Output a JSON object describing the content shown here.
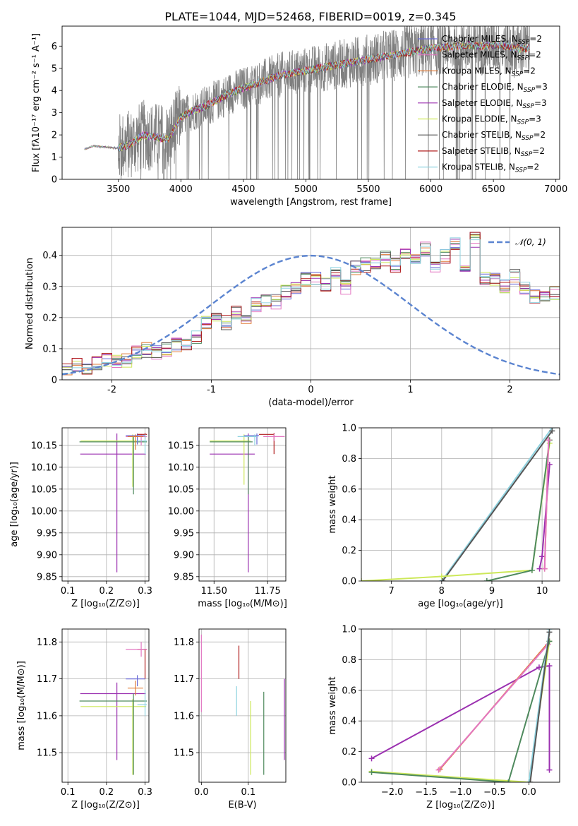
{
  "figure_title": "PLATE=1044, MJD=52468, FIBERID=0019, z=0.345",
  "models": [
    {
      "name": "Chabrier MILES, N",
      "sub": "SSP",
      "tail": "=2",
      "color": "#6b6bd6"
    },
    {
      "name": "Salpeter MILES, N",
      "sub": "SSP",
      "tail": "=2",
      "color": "#e377c2"
    },
    {
      "name": "Kroupa MILES, N",
      "sub": "SSP",
      "tail": "=2",
      "color": "#e07b39"
    },
    {
      "name": "Chabrier ELODIE, N",
      "sub": "SSP",
      "tail": "=3",
      "color": "#4f8a5e"
    },
    {
      "name": "Salpeter ELODIE, N",
      "sub": "SSP",
      "tail": "=3",
      "color": "#9b30b0"
    },
    {
      "name": "Kroupa ELODIE, N",
      "sub": "SSP",
      "tail": "=3",
      "color": "#cde85a"
    },
    {
      "name": "Chabrier STELIB, N",
      "sub": "SSP",
      "tail": "=2",
      "color": "#555555"
    },
    {
      "name": "Salpeter STELIB, N",
      "sub": "SSP",
      "tail": "=2",
      "color": "#b01c1c"
    },
    {
      "name": "Kroupa STELIB, N",
      "sub": "SSP",
      "tail": "=2",
      "color": "#8fd3e0"
    }
  ],
  "chart_data": [
    {
      "id": "spectrum",
      "type": "line",
      "xlabel": "wavelength [Angstrom, rest frame]",
      "ylabel": "Flux [fλ10⁻¹⁷ erg cm⁻² s⁻¹ A⁻¹]",
      "xlim": [
        3050,
        7030
      ],
      "ylim": [
        0,
        6.9
      ],
      "xticks": [
        3500,
        4000,
        4500,
        5000,
        5500,
        6000,
        6500,
        7000
      ],
      "yticks": [
        0,
        1,
        2,
        3,
        4,
        5,
        6
      ],
      "continuum": {
        "x": [
          3230,
          3300,
          3400,
          3500,
          3600,
          3700,
          3800,
          3900,
          4000,
          4100,
          4200,
          4300,
          4400,
          4500,
          4600,
          4700,
          4800,
          4900,
          5000,
          5100,
          5200,
          5300,
          5400,
          5500,
          5600,
          5700,
          5800,
          5900,
          6000,
          6100,
          6200,
          6300,
          6400,
          6500,
          6600,
          6700,
          6800
        ],
        "y": [
          1.35,
          1.5,
          1.45,
          1.4,
          1.6,
          2.0,
          1.9,
          1.8,
          2.8,
          3.1,
          3.3,
          3.6,
          3.9,
          4.1,
          4.3,
          4.5,
          4.7,
          4.8,
          4.9,
          5.0,
          5.1,
          5.2,
          5.3,
          5.4,
          5.5,
          5.6,
          5.7,
          5.8,
          5.9,
          5.95,
          6.0,
          6.05,
          6.0,
          6.05,
          6.0,
          5.9,
          5.9
        ]
      },
      "data_range": [
        3230,
        6790
      ]
    },
    {
      "id": "residuals",
      "type": "bar",
      "xlabel": "(data-model)/error",
      "ylabel": "Normed distribution",
      "xlim": [
        -2.5,
        2.5
      ],
      "ylim": [
        0,
        0.49
      ],
      "xticks": [
        -2,
        -1,
        0,
        1,
        2
      ],
      "yticks": [
        0.0,
        0.1,
        0.2,
        0.3,
        0.4
      ],
      "legend": "𝒩(0, 1)",
      "legend_position": "top-right",
      "grid": true,
      "bin_edges_start": -2.5,
      "bin_width": 0.1,
      "values": [
        0.04,
        0.045,
        0.04,
        0.05,
        0.06,
        0.055,
        0.06,
        0.085,
        0.095,
        0.09,
        0.1,
        0.11,
        0.12,
        0.14,
        0.18,
        0.2,
        0.185,
        0.22,
        0.2,
        0.24,
        0.26,
        0.25,
        0.28,
        0.3,
        0.32,
        0.33,
        0.31,
        0.34,
        0.3,
        0.36,
        0.37,
        0.38,
        0.39,
        0.37,
        0.4,
        0.38,
        0.42,
        0.36,
        0.4,
        0.44,
        0.35,
        0.45,
        0.33,
        0.32,
        0.3,
        0.33,
        0.29,
        0.27,
        0.26,
        0.28,
        0.25,
        0.22,
        0.2,
        0.21,
        0.2,
        0.17,
        0.19,
        0.14,
        0.15,
        0.12,
        0.13,
        0.1,
        0.1,
        0.085,
        0.08,
        0.07,
        0.06,
        0.055,
        0.05,
        0.04,
        0.035,
        0.03,
        0.03
      ],
      "normal_curve": {
        "mean": 0,
        "sigma": 1
      }
    },
    {
      "id": "age_vs_Z",
      "type": "errorbar",
      "xlabel": "Z [log₁₀(Z/Z⊙)]",
      "ylabel": "age  [log₁₀(age/yr)]",
      "xlim": [
        0.085,
        0.31
      ],
      "ylim": [
        9.84,
        10.19
      ],
      "xticks": [
        "0.1",
        "0.2",
        "0.3"
      ],
      "xtick_values": [
        0.1,
        0.2,
        0.3
      ],
      "yticks": [
        "9.85",
        "9.90",
        "9.95",
        "10.00",
        "10.05",
        "10.10",
        "10.15"
      ],
      "ytick_values": [
        9.85,
        9.9,
        9.95,
        10.0,
        10.05,
        10.1,
        10.15
      ],
      "points": [
        {
          "m": 4,
          "x": 0.227,
          "y": 10.13,
          "xerr": [
            0.095,
            0.075
          ],
          "yerr": [
            0.27,
            0.047
          ]
        },
        {
          "m": 5,
          "x": 0.268,
          "y": 10.16,
          "xerr": [
            0.135,
            0.035
          ],
          "yerr": [
            0.105,
            0.015
          ]
        },
        {
          "m": 3,
          "x": 0.27,
          "y": 10.158,
          "xerr": [
            0.14,
            0.035
          ],
          "yerr": [
            0.12,
            0.012
          ]
        },
        {
          "m": 0,
          "x": 0.28,
          "y": 10.172,
          "xerr": [
            0.03,
            0.02
          ],
          "yerr": [
            0.02,
            0.005
          ]
        },
        {
          "m": 1,
          "x": 0.29,
          "y": 10.17,
          "xerr": [
            0.04,
            0.015
          ],
          "yerr": [
            0.02,
            0.006
          ]
        },
        {
          "m": 2,
          "x": 0.275,
          "y": 10.17,
          "xerr": [
            0.02,
            0.02
          ],
          "yerr": [
            0.03,
            0.005
          ]
        },
        {
          "m": 7,
          "x": 0.3,
          "y": 10.175,
          "xerr": [
            0.02,
            0.005
          ],
          "yerr": [
            0.01,
            0.003
          ]
        },
        {
          "m": 8,
          "x": 0.3,
          "y": 10.16,
          "xerr": [
            0.02,
            0.005
          ],
          "yerr": [
            0.03,
            0.015
          ]
        }
      ]
    },
    {
      "id": "age_vs_mass",
      "type": "errorbar",
      "xlabel": "mass [log₁₀(M/M⊙)]",
      "ylabel": "",
      "xlim": [
        11.43,
        11.835
      ],
      "ylim": [
        9.84,
        10.19
      ],
      "xticks": [
        "11.50",
        "11.75"
      ],
      "xtick_values": [
        11.5,
        11.75
      ],
      "yticks": [
        "9.85",
        "9.90",
        "9.95",
        "10.00",
        "10.05",
        "10.10",
        "10.15"
      ],
      "ytick_values": [
        9.85,
        9.9,
        9.95,
        10.0,
        10.05,
        10.1,
        10.15
      ],
      "points": [
        {
          "m": 4,
          "x": 11.66,
          "y": 10.13,
          "xerr": [
            0.18,
            0.03
          ],
          "yerr": [
            0.27,
            0.047
          ]
        },
        {
          "m": 5,
          "x": 11.64,
          "y": 10.16,
          "xerr": [
            0.16,
            0.03
          ],
          "yerr": [
            0.1,
            0.015
          ]
        },
        {
          "m": 3,
          "x": 11.66,
          "y": 10.158,
          "xerr": [
            0.18,
            0.02
          ],
          "yerr": [
            0.12,
            0.012
          ]
        },
        {
          "m": 7,
          "x": 11.78,
          "y": 10.175,
          "xerr": [
            0.07,
            0.0
          ],
          "yerr": [
            0.045,
            0.003
          ]
        },
        {
          "m": 1,
          "x": 11.78,
          "y": 10.17,
          "xerr": [
            0.05,
            0.05
          ],
          "yerr": [
            0.01,
            0.006
          ]
        },
        {
          "m": 0,
          "x": 11.7,
          "y": 10.172,
          "xerr": [
            0.06,
            0.01
          ],
          "yerr": [
            0.02,
            0.005
          ]
        },
        {
          "m": 8,
          "x": 11.69,
          "y": 10.17,
          "xerr": [
            0.08,
            0.01
          ],
          "yerr": [
            0.02,
            0.005
          ]
        }
      ]
    },
    {
      "id": "massweight_vs_age",
      "type": "line",
      "xlabel": "age  [log₁₀(age/yr)]",
      "ylabel": "mass weight",
      "xlim": [
        6.4,
        10.35
      ],
      "ylim": [
        0,
        1.0
      ],
      "xticks": [
        "7",
        "8",
        "9",
        "10"
      ],
      "xtick_values": [
        7,
        8,
        9,
        10
      ],
      "yticks": [
        "0.0",
        "0.2",
        "0.4",
        "0.6",
        "0.8",
        "1.0"
      ],
      "ytick_values": [
        0,
        0.2,
        0.4,
        0.6,
        0.8,
        1.0
      ],
      "grid": true,
      "series": [
        {
          "m": 8,
          "x": [
            8.0,
            10.2
          ],
          "y": [
            0.0,
            1.0
          ]
        },
        {
          "m": 6,
          "x": [
            8.02,
            10.2
          ],
          "y": [
            0.0,
            0.98
          ]
        },
        {
          "m": 5,
          "x": [
            6.4,
            8.0,
            9.8,
            10.15
          ],
          "y": [
            0.0,
            0.03,
            0.07,
            0.9
          ]
        },
        {
          "m": 3,
          "x": [
            8.9,
            9.8,
            10.15
          ],
          "y": [
            0.0,
            0.07,
            0.92
          ]
        },
        {
          "m": 4,
          "x": [
            9.95,
            10.0,
            10.15
          ],
          "y": [
            0.08,
            0.16,
            0.76
          ]
        },
        {
          "m": 2,
          "x": [
            10.05,
            10.13
          ],
          "y": [
            0.08,
            0.92
          ]
        },
        {
          "m": 1,
          "x": [
            10.05,
            10.13
          ],
          "y": [
            0.08,
            0.92
          ]
        }
      ]
    },
    {
      "id": "mass_vs_Z",
      "type": "errorbar",
      "xlabel": "Z [log₁₀(Z/Z⊙)]",
      "ylabel": "mass [log₁₀(M/M⊙)]",
      "xlim": [
        0.085,
        0.31
      ],
      "ylim": [
        11.42,
        11.835
      ],
      "xticks": [
        "0.1",
        "0.2",
        "0.3"
      ],
      "xtick_values": [
        0.1,
        0.2,
        0.3
      ],
      "yticks": [
        "11.5",
        "11.6",
        "11.7",
        "11.8"
      ],
      "ytick_values": [
        11.5,
        11.6,
        11.7,
        11.8
      ],
      "points": [
        {
          "m": 4,
          "x": 0.227,
          "y": 11.66,
          "xerr": [
            0.095,
            0.075
          ],
          "yerr": [
            0.18,
            0.03
          ]
        },
        {
          "m": 5,
          "x": 0.268,
          "y": 11.625,
          "xerr": [
            0.135,
            0.035
          ],
          "yerr": [
            0.185,
            0.02
          ]
        },
        {
          "m": 3,
          "x": 0.27,
          "y": 11.64,
          "xerr": [
            0.14,
            0.035
          ],
          "yerr": [
            0.2,
            0.02
          ]
        },
        {
          "m": 7,
          "x": 0.3,
          "y": 11.78,
          "xerr": [
            0.02,
            0.005
          ],
          "yerr": [
            0.08,
            0.0
          ]
        },
        {
          "m": 1,
          "x": 0.29,
          "y": 11.78,
          "xerr": [
            0.04,
            0.015
          ],
          "yerr": [
            0.02,
            0.02
          ]
        },
        {
          "m": 2,
          "x": 0.275,
          "y": 11.675,
          "xerr": [
            0.02,
            0.02
          ],
          "yerr": [
            0.02,
            0.02
          ]
        },
        {
          "m": 0,
          "x": 0.28,
          "y": 11.7,
          "xerr": [
            0.03,
            0.02
          ],
          "yerr": [
            0.02,
            0.01
          ]
        },
        {
          "m": 8,
          "x": 0.3,
          "y": 11.63,
          "xerr": [
            0.02,
            0.005
          ],
          "yerr": [
            0.03,
            0.04
          ]
        }
      ]
    },
    {
      "id": "mass_vs_ebv",
      "type": "errorbar",
      "xlabel": "E(B-V)",
      "ylabel": "",
      "xlim": [
        -0.005,
        0.18
      ],
      "ylim": [
        11.42,
        11.835
      ],
      "xticks": [
        "0.0",
        "0.1"
      ],
      "xtick_values": [
        0.0,
        0.1
      ],
      "yticks": [
        "11.5",
        "11.6",
        "11.7",
        "11.8"
      ],
      "ytick_values": [
        11.5,
        11.6,
        11.7,
        11.8
      ],
      "points": [
        {
          "m": 1,
          "x": 0.0,
          "y": 11.75,
          "xerr": [
            0,
            0
          ],
          "yerr": [
            0.14,
            0.07
          ]
        },
        {
          "m": 7,
          "x": 0.08,
          "y": 11.74,
          "xerr": [
            0,
            0
          ],
          "yerr": [
            0.04,
            0.05
          ]
        },
        {
          "m": 8,
          "x": 0.075,
          "y": 11.63,
          "xerr": [
            0,
            0
          ],
          "yerr": [
            0.03,
            0.05
          ]
        },
        {
          "m": 5,
          "x": 0.105,
          "y": 11.54,
          "xerr": [
            0,
            0
          ],
          "yerr": [
            0.1,
            0.1
          ]
        },
        {
          "m": 3,
          "x": 0.133,
          "y": 11.55,
          "xerr": [
            0,
            0
          ],
          "yerr": [
            0.11,
            0.115
          ]
        },
        {
          "m": 4,
          "x": 0.177,
          "y": 11.6,
          "xerr": [
            0,
            0
          ],
          "yerr": [
            0.12,
            0.1
          ]
        }
      ]
    },
    {
      "id": "massweight_vs_Z",
      "type": "line",
      "xlabel": "Z [log₁₀(Z/Z⊙)]",
      "ylabel": "mass weight",
      "xlim": [
        -2.45,
        0.45
      ],
      "ylim": [
        0,
        1.0
      ],
      "xticks": [
        "−2.0",
        "−1.5",
        "−1.0",
        "−0.5",
        "0.0"
      ],
      "xtick_values": [
        -2.0,
        -1.5,
        -1.0,
        -0.5,
        0.0
      ],
      "yticks": [
        "0.0",
        "0.2",
        "0.4",
        "0.6",
        "0.8",
        "1.0"
      ],
      "ytick_values": [
        0,
        0.2,
        0.4,
        0.6,
        0.8,
        1.0
      ],
      "grid": true,
      "series": [
        {
          "m": 4,
          "x": [
            -2.3,
            0.15,
            0.3,
            0.3
          ],
          "y": [
            0.155,
            0.75,
            0.76,
            0.08
          ]
        },
        {
          "m": 2,
          "x": [
            -1.3,
            0.3
          ],
          "y": [
            0.085,
            0.92
          ]
        },
        {
          "m": 1,
          "x": [
            -1.32,
            0.28
          ],
          "y": [
            0.08,
            0.9
          ]
        },
        {
          "m": 5,
          "x": [
            -2.3,
            0.0,
            0.3
          ],
          "y": [
            0.07,
            0.0,
            0.92
          ]
        },
        {
          "m": 3,
          "x": [
            -2.3,
            -0.3,
            0.3
          ],
          "y": [
            0.065,
            0.0,
            0.92
          ]
        },
        {
          "m": 8,
          "x": [
            0.0,
            0.3
          ],
          "y": [
            0.0,
            1.0
          ]
        },
        {
          "m": 6,
          "x": [
            0.02,
            0.3
          ],
          "y": [
            0.0,
            0.98
          ]
        }
      ]
    }
  ]
}
